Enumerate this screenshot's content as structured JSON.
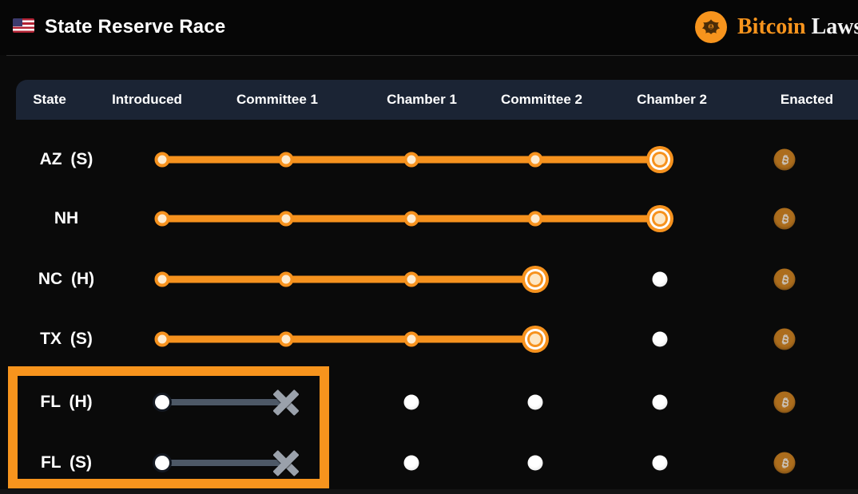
{
  "header": {
    "title": "State Reserve Race",
    "flag_icon": "us-flag",
    "brand": {
      "logo_icon": "eagle-seal",
      "name_part1": "Bitcoin",
      "name_part2": "Laws"
    }
  },
  "colors": {
    "accent_orange": "#f7941d",
    "header_band_navy": "#1b2434",
    "dead_track_slate": "#4d5866",
    "dead_x_grey": "#9aa1ab",
    "coin_dim_orange": "#ac6d1d",
    "dot_cream": "#fdebd0",
    "dot_future_white": "#f1f1f1",
    "background": "#0a0a0a"
  },
  "table": {
    "columns": [
      "State",
      "Introduced",
      "Committee 1",
      "Chamber 1",
      "Committee 2",
      "Chamber 2",
      "Enacted"
    ],
    "stage_keys": [
      "introduced",
      "committee1",
      "chamber1",
      "committee2",
      "chamber2"
    ],
    "rows": [
      {
        "state": "AZ (S)",
        "status": "active",
        "furthest_stage": "chamber2",
        "enacted": false
      },
      {
        "state": "NH",
        "status": "active",
        "furthest_stage": "chamber2",
        "enacted": false
      },
      {
        "state": "NC (H)",
        "status": "active",
        "furthest_stage": "committee2",
        "enacted": false
      },
      {
        "state": "TX (S)",
        "status": "active",
        "furthest_stage": "committee2",
        "enacted": false
      },
      {
        "state": "FL (H)",
        "status": "dead",
        "furthest_stage": "committee1",
        "enacted": false
      },
      {
        "state": "FL (S)",
        "status": "dead",
        "furthest_stage": "committee1",
        "enacted": false
      }
    ]
  },
  "annotation": {
    "highlight": "orange box around FL (H) and FL (S) rows"
  }
}
